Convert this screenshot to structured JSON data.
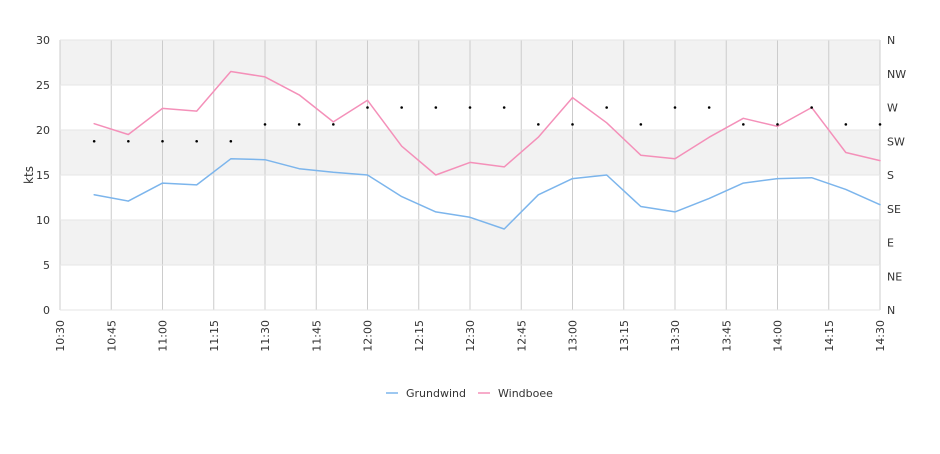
{
  "chart_data": {
    "type": "line",
    "ylabel": "kts",
    "ylim": [
      0,
      30
    ],
    "y_ticks": [
      0,
      5,
      10,
      15,
      20,
      25,
      30
    ],
    "xlim": [
      "10:30",
      "14:30"
    ],
    "x_ticks": [
      "10:30",
      "10:45",
      "11:00",
      "11:15",
      "11:30",
      "11:45",
      "12:00",
      "12:15",
      "12:30",
      "12:45",
      "13:00",
      "13:15",
      "13:30",
      "13:45",
      "14:00",
      "14:15",
      "14:30"
    ],
    "direction_ticks": [
      "N",
      "NE",
      "E",
      "SE",
      "S",
      "SW",
      "W",
      "NW",
      "N"
    ],
    "times": [
      "10:40",
      "10:50",
      "11:00",
      "11:10",
      "11:20",
      "11:30",
      "11:40",
      "11:50",
      "12:00",
      "12:10",
      "12:20",
      "12:30",
      "12:40",
      "12:50",
      "13:00",
      "13:10",
      "13:20",
      "13:30",
      "13:40",
      "13:50",
      "14:00",
      "14:10",
      "14:20",
      "14:30"
    ],
    "series": [
      {
        "name": "Grundwind",
        "color": "#7cb5ec",
        "values": [
          12.8,
          12.1,
          14.1,
          13.9,
          16.8,
          16.7,
          15.7,
          15.3,
          15.0,
          12.6,
          10.9,
          10.3,
          9.0,
          12.8,
          14.6,
          15.0,
          11.5,
          10.9,
          12.4,
          14.1,
          14.6,
          14.7,
          13.4,
          11.7
        ]
      },
      {
        "name": "Windboee",
        "color": "#f490b9",
        "values": [
          20.7,
          19.5,
          22.4,
          22.1,
          26.5,
          25.9,
          23.9,
          20.9,
          23.3,
          18.2,
          15.0,
          16.4,
          15.9,
          19.2,
          23.6,
          20.8,
          17.2,
          16.8,
          19.2,
          21.3,
          20.4,
          22.5,
          17.5,
          16.6
        ]
      }
    ],
    "direction_dots": {
      "color": "#000000",
      "values": [
        "SW",
        "SW",
        "SW",
        "SW",
        "SW",
        "WSW",
        "WSW",
        "WSW",
        "W",
        "W",
        "W",
        "W",
        "W",
        "WSW",
        "WSW",
        "W",
        "WSW",
        "W",
        "W",
        "WSW",
        "WSW",
        "W",
        "WSW",
        "WSW"
      ]
    },
    "legend_position": "bottom",
    "grid": true
  }
}
